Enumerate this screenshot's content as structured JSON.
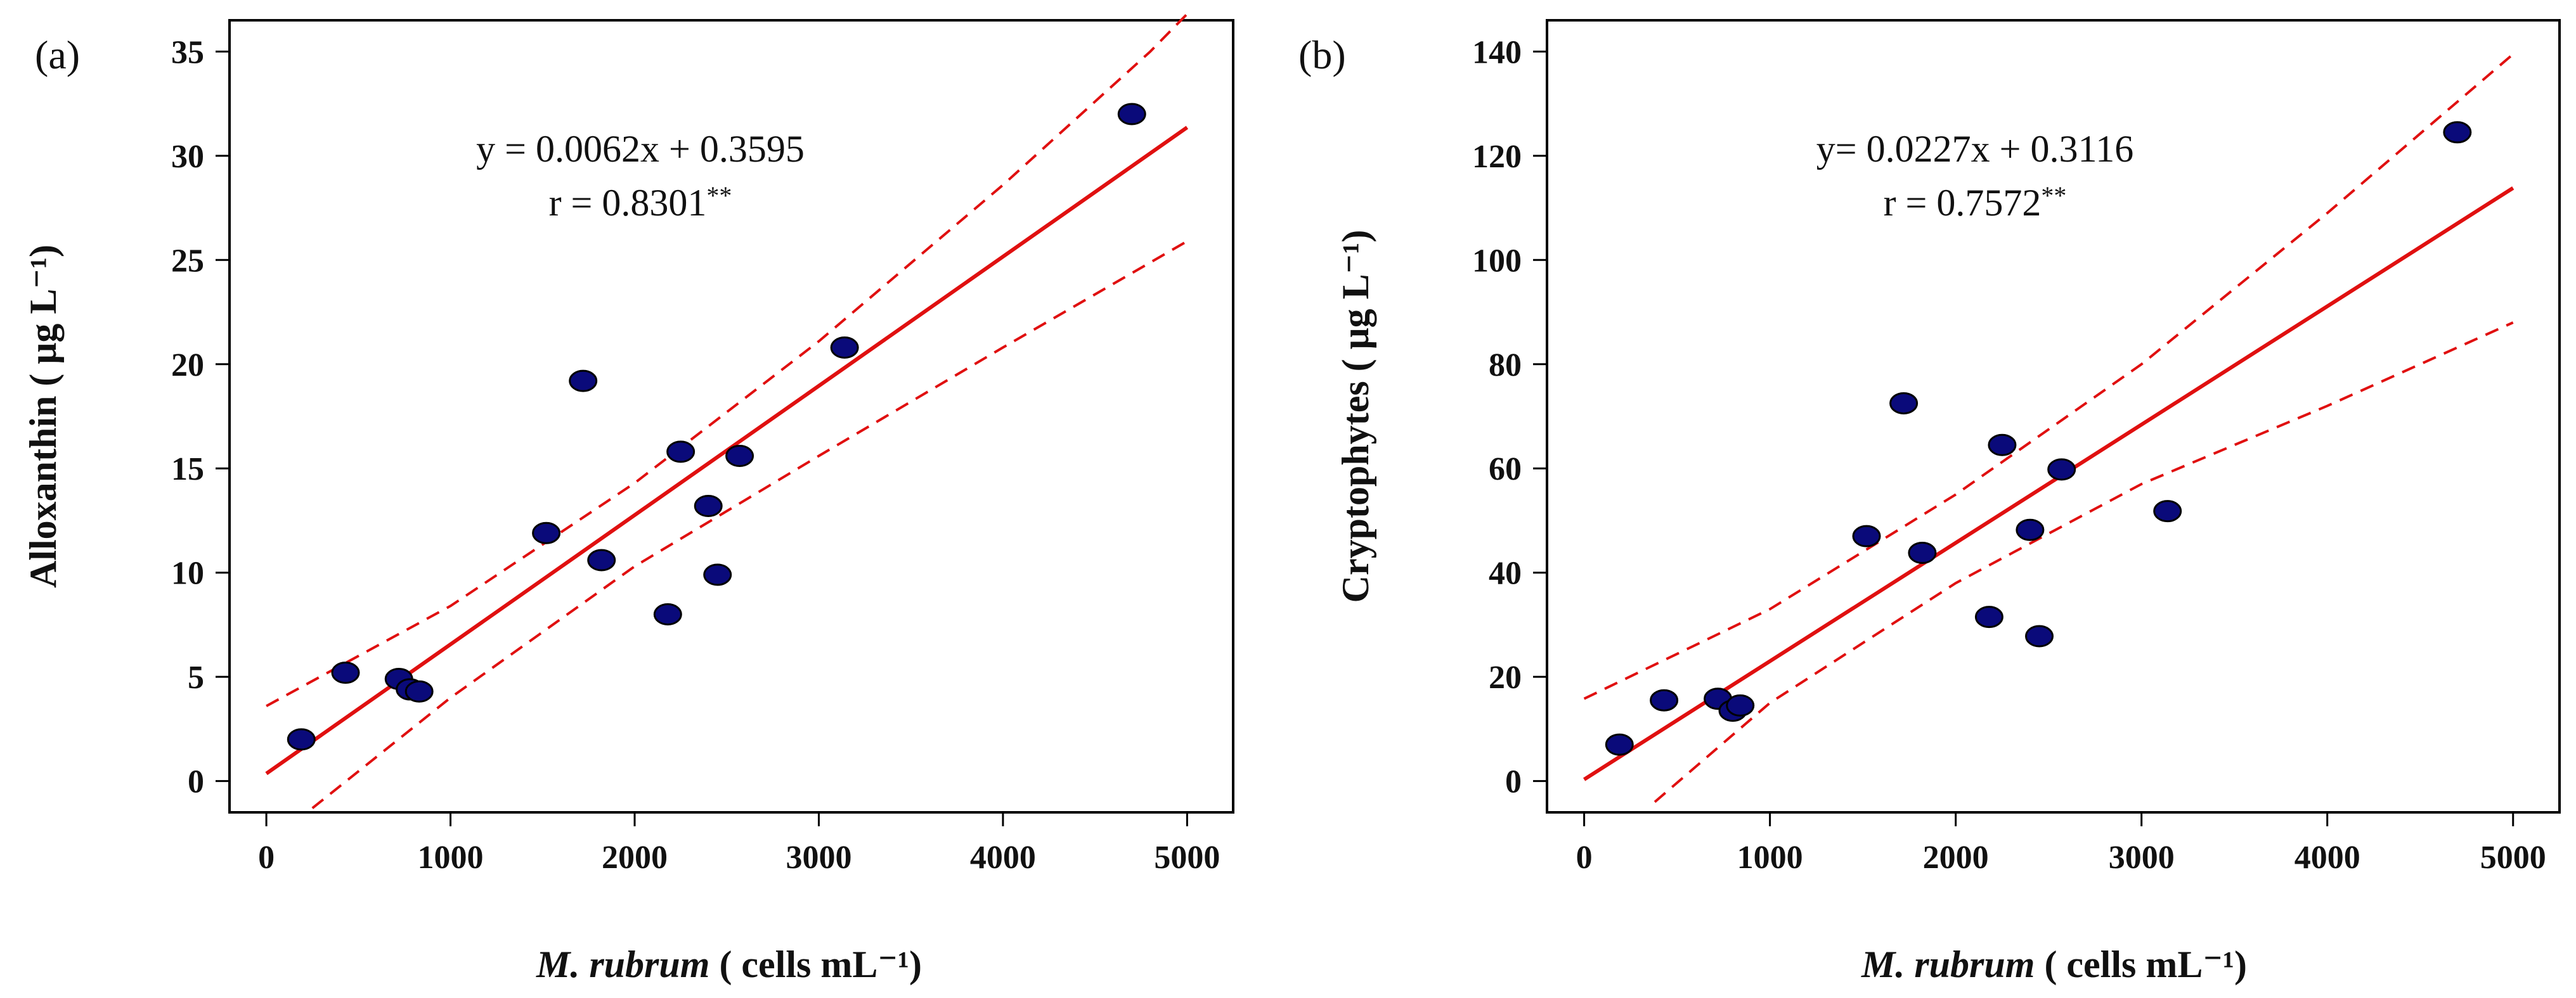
{
  "chart_data": [
    {
      "type": "scatter",
      "panel_label": "(a)",
      "ylabel": "Alloxanthin ( μg L⁻¹)",
      "xlabel_italic": "M. rubrum",
      "xlabel_rest": " ( cells mL⁻¹)",
      "equation": "y = 0.0062x + 0.3595",
      "r_text": "r = 0.8301",
      "r_sig": "**",
      "xlim": [
        -200,
        5250
      ],
      "ylim": [
        -1.5,
        36.5
      ],
      "x_ticks": [
        0,
        1000,
        2000,
        3000,
        4000,
        5000
      ],
      "y_ticks": [
        0,
        5,
        10,
        15,
        20,
        25,
        30,
        35
      ],
      "points": [
        {
          "x": 190,
          "y": 2.0
        },
        {
          "x": 430,
          "y": 5.2
        },
        {
          "x": 720,
          "y": 4.9
        },
        {
          "x": 780,
          "y": 4.4
        },
        {
          "x": 830,
          "y": 4.3
        },
        {
          "x": 1520,
          "y": 11.9
        },
        {
          "x": 1720,
          "y": 19.2
        },
        {
          "x": 1820,
          "y": 10.6
        },
        {
          "x": 2180,
          "y": 8.0
        },
        {
          "x": 2250,
          "y": 15.8
        },
        {
          "x": 2400,
          "y": 13.2
        },
        {
          "x": 2450,
          "y": 9.9
        },
        {
          "x": 2570,
          "y": 15.6
        },
        {
          "x": 3140,
          "y": 20.8
        },
        {
          "x": 4700,
          "y": 32.0
        }
      ],
      "fit": {
        "slope": 0.0062,
        "intercept": 0.3595,
        "x_range": [
          0,
          5000
        ]
      },
      "ci_upper": [
        [
          0,
          3.6
        ],
        [
          1000,
          8.4
        ],
        [
          2000,
          14.3
        ],
        [
          3000,
          21.1
        ],
        [
          4000,
          28.6
        ],
        [
          4800,
          35.0
        ],
        [
          5000,
          36.8
        ]
      ],
      "ci_lower": [
        [
          250,
          -1.3
        ],
        [
          1000,
          4.0
        ],
        [
          2000,
          10.3
        ],
        [
          3000,
          15.6
        ],
        [
          4000,
          20.8
        ],
        [
          5000,
          25.9
        ]
      ],
      "point_color": "#0a0a7a",
      "line_color": "#e01010"
    },
    {
      "type": "scatter",
      "panel_label": "(b)",
      "ylabel": "Cryptophytes ( μg L⁻¹)",
      "xlabel_italic": "M. rubrum",
      "xlabel_rest": " ( cells mL⁻¹)",
      "equation": "y= 0.0227x + 0.3116",
      "r_text": "r = 0.7572",
      "r_sig": "**",
      "xlim": [
        -200,
        5250
      ],
      "ylim": [
        -6,
        146
      ],
      "x_ticks": [
        0,
        1000,
        2000,
        3000,
        4000,
        5000
      ],
      "y_ticks": [
        0,
        20,
        40,
        60,
        80,
        100,
        120,
        140
      ],
      "points": [
        {
          "x": 190,
          "y": 7.0
        },
        {
          "x": 430,
          "y": 15.5
        },
        {
          "x": 720,
          "y": 15.8
        },
        {
          "x": 800,
          "y": 13.5
        },
        {
          "x": 840,
          "y": 14.5
        },
        {
          "x": 1520,
          "y": 47.0
        },
        {
          "x": 1720,
          "y": 72.5
        },
        {
          "x": 1820,
          "y": 43.8
        },
        {
          "x": 2180,
          "y": 31.5
        },
        {
          "x": 2250,
          "y": 64.5
        },
        {
          "x": 2400,
          "y": 48.2
        },
        {
          "x": 2450,
          "y": 27.8
        },
        {
          "x": 2570,
          "y": 59.8
        },
        {
          "x": 3140,
          "y": 51.8
        },
        {
          "x": 4700,
          "y": 124.5
        }
      ],
      "fit": {
        "slope": 0.0227,
        "intercept": 0.3116,
        "x_range": [
          0,
          5000
        ]
      },
      "ci_upper": [
        [
          0,
          15.8
        ],
        [
          1000,
          33.0
        ],
        [
          2000,
          55.0
        ],
        [
          3000,
          80.0
        ],
        [
          4000,
          109.0
        ],
        [
          5000,
          139.5
        ]
      ],
      "ci_lower": [
        [
          380,
          -4.0
        ],
        [
          1000,
          15.0
        ],
        [
          2000,
          38.0
        ],
        [
          3000,
          57.0
        ],
        [
          4000,
          72.0
        ],
        [
          5000,
          88.0
        ]
      ],
      "point_color": "#0a0a7a",
      "line_color": "#e01010"
    }
  ]
}
